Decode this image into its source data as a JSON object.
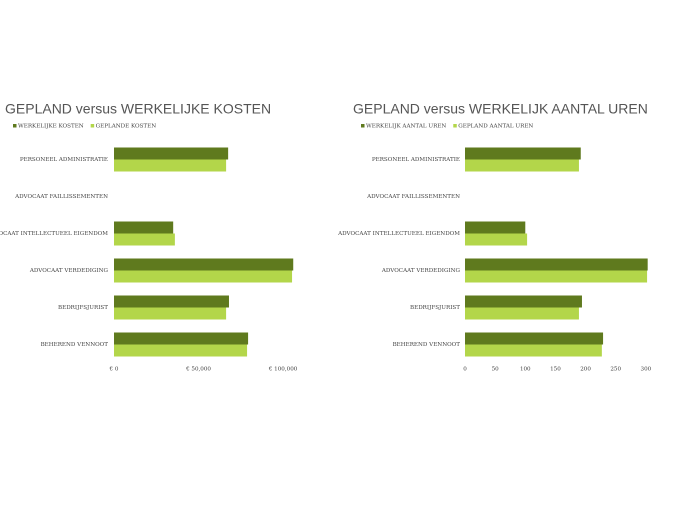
{
  "chart_data": [
    {
      "type": "hbar",
      "title": "GEPLAND versus WERKELIJKE KOSTEN",
      "categories": [
        "PERSONEEL ADMINISTRATIE",
        "ADVOCAAT FAILLISSEMENTEN",
        "ADVOCAAT INTELLECTUEEL EIGENDOM",
        "ADVOCAAT VERDEDIGING",
        "BEDRIJFSJURIST",
        "BEHEREND VENNOOT"
      ],
      "series": [
        {
          "name": "WERKELIJKE KOSTEN",
          "color": "#5f7a1e",
          "values": [
            67500,
            0,
            35000,
            106000,
            68000,
            79300
          ]
        },
        {
          "name": "GEPLANDE KOSTEN",
          "color": "#b3d64a",
          "values": [
            66300,
            0,
            36000,
            105300,
            66300,
            78700
          ]
        }
      ],
      "xlim": [
        0,
        110000
      ],
      "xticks": [
        {
          "value": 0,
          "label": "€ 0"
        },
        {
          "value": 50000,
          "label": "€ 50,000"
        },
        {
          "value": 100000,
          "label": "€ 100,000"
        }
      ],
      "legend": "top-left"
    },
    {
      "type": "hbar",
      "title": "GEPLAND versus WERKELIJK AANTAL UREN",
      "categories": [
        "PERSONEEL ADMINISTRATIE",
        "ADVOCAAT FAILLISSEMENTEN",
        "ADVOCAAT INTELLECTUEEL EIGENDOM",
        "ADVOCAAT VERDEDIGING",
        "BEDRIJFSJURIST",
        "BEHEREND VENNOOT"
      ],
      "series": [
        {
          "name": "WERKELIJK AANTAL UREN",
          "color": "#5f7a1e",
          "values": [
            192,
            0,
            100,
            303,
            194,
            229
          ]
        },
        {
          "name": "GEPLAND AANTAL UREN",
          "color": "#b3d64a",
          "values": [
            189,
            0,
            103,
            302,
            189,
            227
          ]
        }
      ],
      "xlim": [
        0,
        345
      ],
      "xticks": [
        0,
        50,
        100,
        150,
        200,
        250,
        300
      ],
      "legend": "top-left"
    }
  ]
}
